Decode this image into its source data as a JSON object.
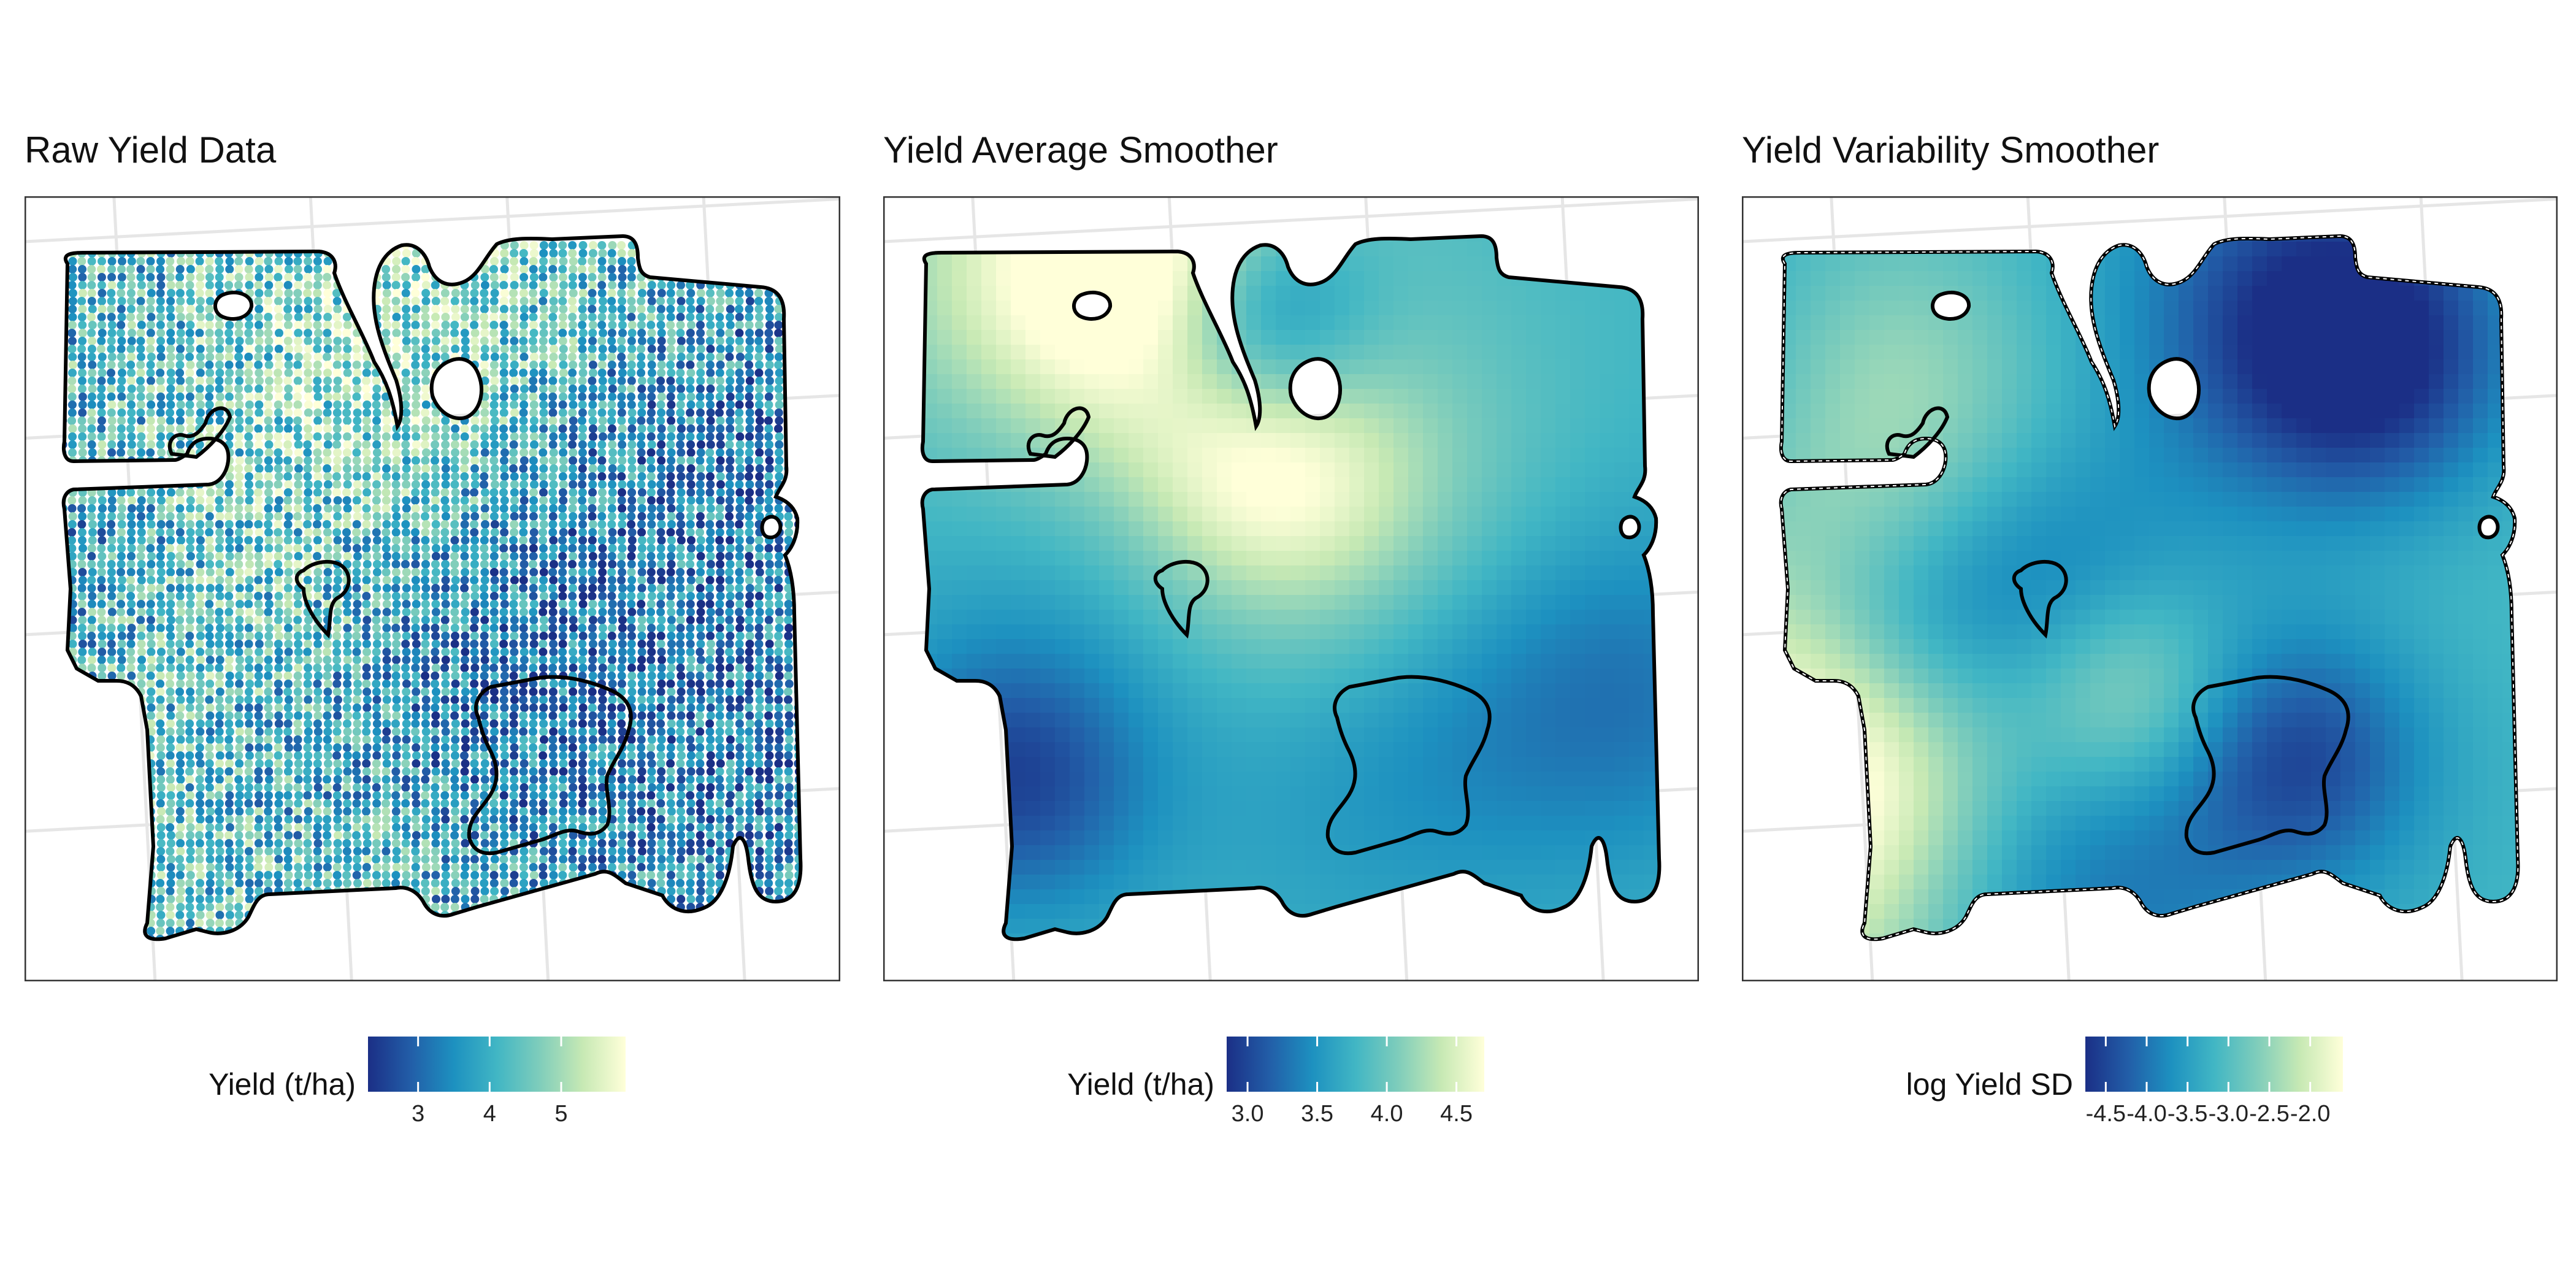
{
  "colors": {
    "scale": [
      "#1b2f86",
      "#225ea8",
      "#1d91c0",
      "#41b6c4",
      "#7fcdbb",
      "#c7e9b4",
      "#ffffd9"
    ],
    "grid": "#e6e6e6",
    "border": "#333333"
  },
  "chart_data": [
    {
      "type": "heatmap",
      "title": "Raw Yield Data",
      "legend": {
        "title": "Yield (t/ha)",
        "position": "bottom",
        "range": [
          2.3,
          5.9
        ],
        "ticks": [
          3,
          4,
          5
        ],
        "tick_labels": [
          "3",
          "4",
          "5"
        ]
      },
      "style": "points",
      "seed": 11,
      "grid": true
    },
    {
      "type": "heatmap",
      "title": "Yield Average Smoother",
      "legend": {
        "title": "Yield (t/ha)",
        "position": "bottom",
        "range": [
          2.85,
          4.7
        ],
        "ticks": [
          3.0,
          3.5,
          4.0,
          4.5
        ],
        "tick_labels": [
          "3.0",
          "3.5",
          "4.0",
          "4.5"
        ]
      },
      "style": "smooth",
      "seed": 23,
      "grid": true
    },
    {
      "type": "heatmap",
      "title": "Yield Variability Smoother",
      "legend": {
        "title": "log Yield SD",
        "position": "bottom",
        "range": [
          -4.75,
          -1.6
        ],
        "ticks": [
          -4.5,
          -4.0,
          -3.5,
          -3.0,
          -2.5,
          -2.0
        ],
        "tick_labels": [
          "-4.5",
          "-4.0",
          "-3.5",
          "-3.0",
          "-2.5",
          "-2.0"
        ]
      },
      "style": "smooth",
      "seed": 37,
      "grid": true
    }
  ]
}
